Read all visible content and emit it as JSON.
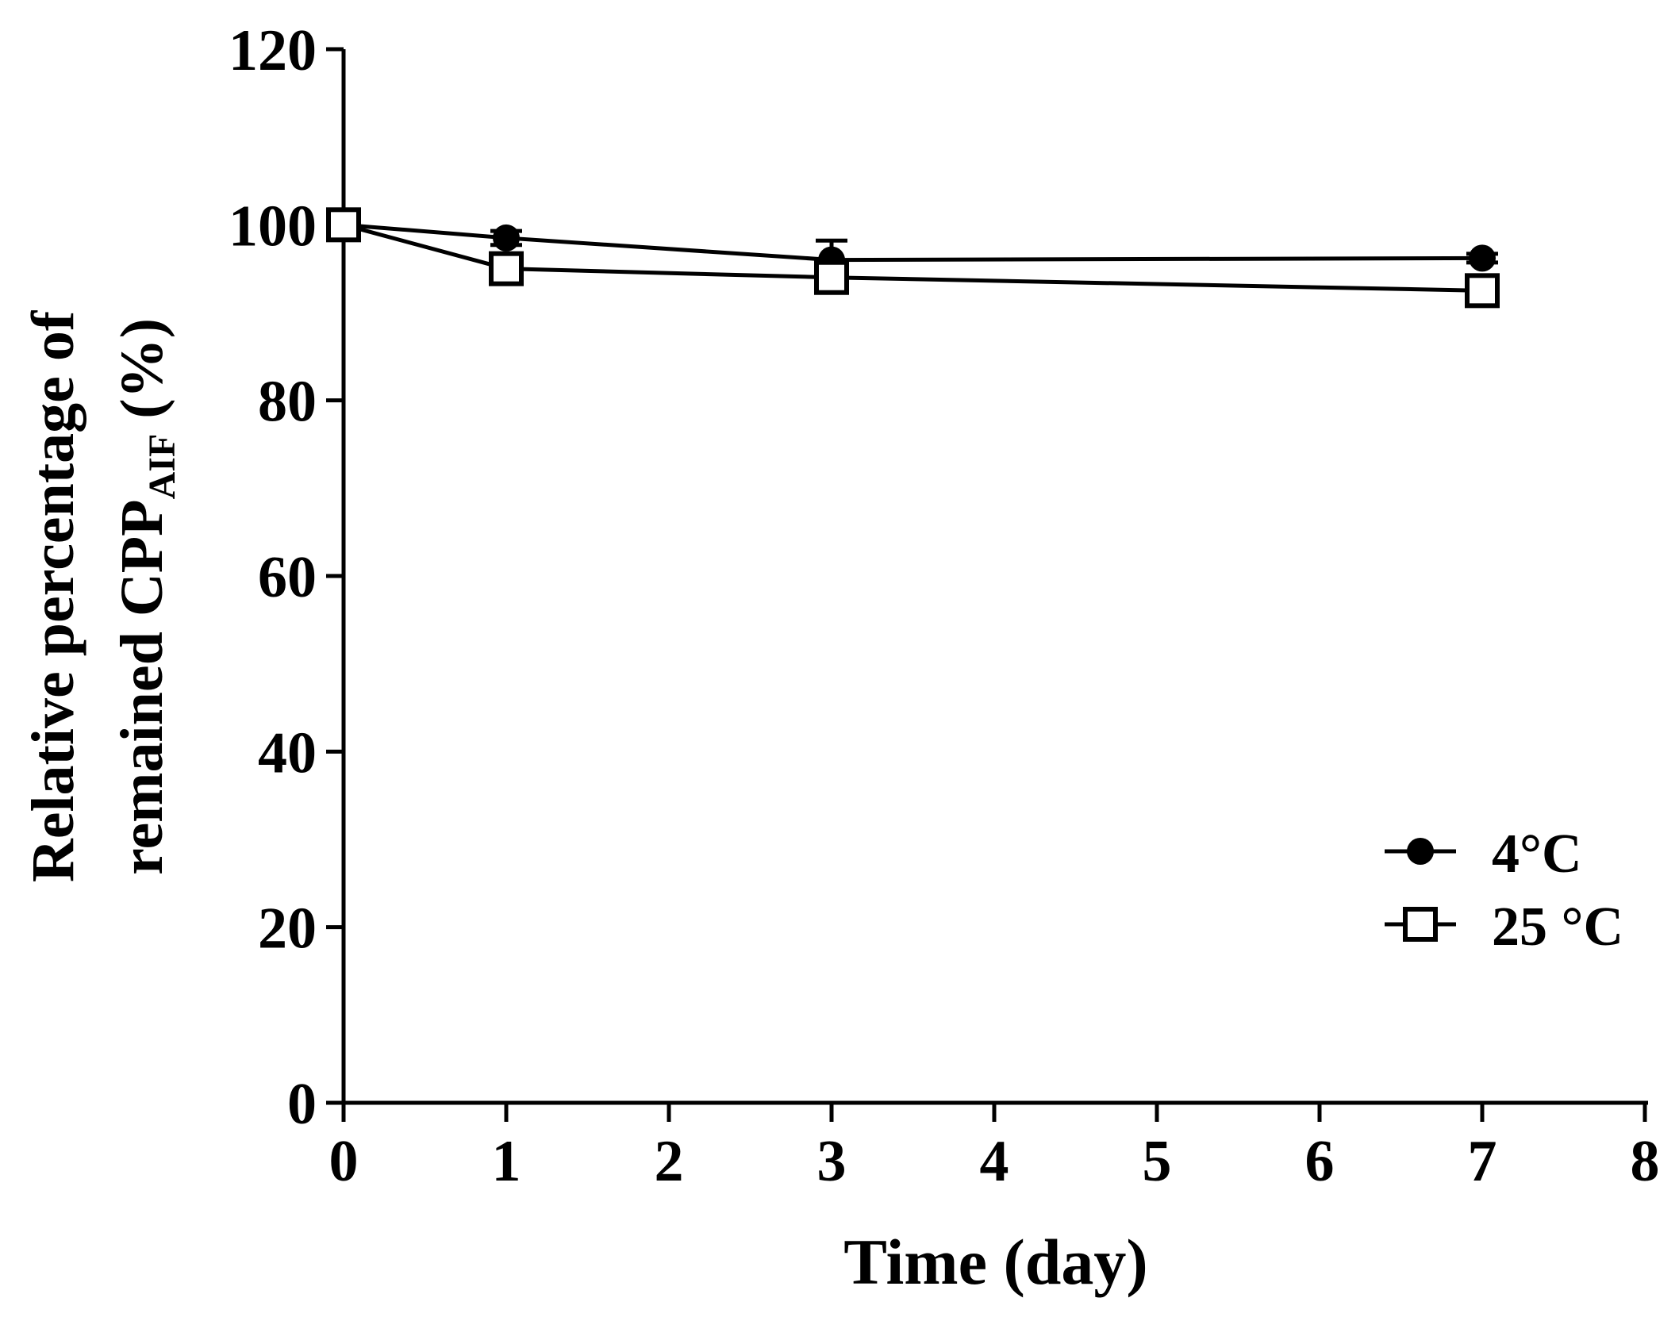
{
  "chart_data": {
    "type": "line",
    "xlabel": "Time (day)",
    "ylabel_line1": "Relative percentage of",
    "ylabel_line2_main": "remained CPP",
    "ylabel_line2_sub": "AIF",
    "ylabel_line2_tail": " (%)",
    "xlim": [
      0,
      8
    ],
    "ylim": [
      0,
      120
    ],
    "x_ticks": [
      "0",
      "1",
      "2",
      "3",
      "4",
      "5",
      "6",
      "7",
      "8"
    ],
    "y_ticks": [
      "0",
      "20",
      "40",
      "60",
      "80",
      "100",
      "120"
    ],
    "grid": false,
    "legend_position": "bottom-right",
    "series": [
      {
        "name": "4°C",
        "marker": "filled-circle",
        "x": [
          0,
          1,
          3,
          7
        ],
        "y": [
          100,
          98.5,
          96,
          96.2
        ],
        "err": [
          0,
          0.8,
          2.2,
          0.5
        ]
      },
      {
        "name": "25 °C",
        "marker": "open-square",
        "x": [
          0,
          1,
          3,
          7
        ],
        "y": [
          100,
          95,
          94,
          92.5
        ],
        "err": [
          0,
          1.2,
          1.5,
          0.6
        ]
      }
    ]
  }
}
